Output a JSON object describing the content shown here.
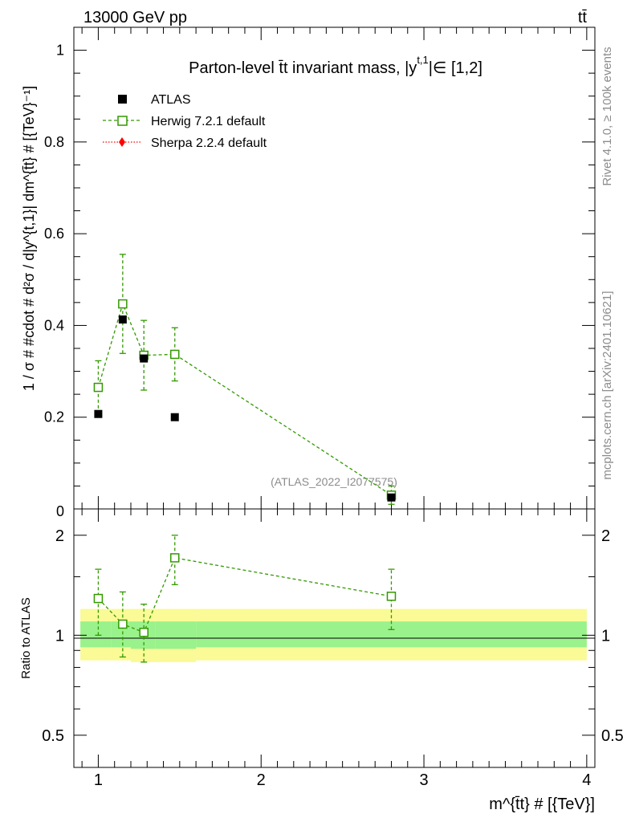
{
  "header": {
    "energy": "13000 GeV pp",
    "process": "tt̄"
  },
  "side_labels": {
    "rivet": "Rivet 4.1.0, ≥ 100k events",
    "source": "mcplots.cern.ch [arXiv:2401.10621]"
  },
  "colors": {
    "atlas": "#000000",
    "herwig": "#339900",
    "sherpa": "#ff0000",
    "band_inner": "#99f28c",
    "band_outer": "#fafa96"
  },
  "chart_data": [
    {
      "type": "scatter",
      "title": "Parton-level t̄t invariant mass, |y",
      "title_sup": "t,1",
      "title_end": "|∈ [1,2]",
      "ylabel": "1 / σ # #cdot # d²σ / d|y^{t,1}| dm^{t̄t} # [{TeV}⁻¹]",
      "ylim": [
        0,
        1.05
      ],
      "xlim": [
        0.85,
        4.05
      ],
      "yticks": [
        0.2,
        0.4,
        0.6,
        0.8,
        1
      ],
      "ytick_labels": [
        "0.2",
        "0.4",
        "0.6",
        "0.8",
        "1"
      ],
      "y_zero_label": "0",
      "watermark": "(ATLAS_2022_I2077575)",
      "legend": [
        "ATLAS",
        "Herwig 7.2.1 default",
        "Sherpa 2.2.4 default"
      ],
      "series": [
        {
          "name": "ATLAS",
          "x": [
            1.0,
            1.15,
            1.28,
            1.47,
            2.8
          ],
          "y": [
            0.207,
            0.413,
            0.328,
            0.2,
            0.025
          ]
        },
        {
          "name": "Herwig 7.2.1 default",
          "x": [
            1.0,
            1.15,
            1.28,
            1.47,
            2.8
          ],
          "y": [
            0.265,
            0.447,
            0.335,
            0.337,
            0.03
          ],
          "err_lo": [
            0.058,
            0.108,
            0.076,
            0.058,
            0.02
          ],
          "err_hi": [
            0.058,
            0.108,
            0.076,
            0.058,
            0.02
          ]
        }
      ]
    },
    {
      "type": "scatter",
      "ylabel": "Ratio to ATLAS",
      "xlabel": "m^{t̄t} # [{TeV}]",
      "ylim": [
        0.4,
        2.4
      ],
      "yscale": "log",
      "xlim": [
        0.85,
        4.05
      ],
      "yticks": [
        0.5,
        1,
        2
      ],
      "ytick_labels": [
        "0.5",
        "1",
        "2"
      ],
      "xticks": [
        1,
        2,
        3,
        4
      ],
      "xtick_labels": [
        "1",
        "2",
        "3",
        "4"
      ],
      "bands": [
        {
          "x0": 0.89,
          "x1": 1.08,
          "inner": [
            0.92,
            1.1
          ],
          "outer": [
            0.84,
            1.2
          ]
        },
        {
          "x0": 1.08,
          "x1": 1.2,
          "inner": [
            0.92,
            1.1
          ],
          "outer": [
            0.84,
            1.2
          ]
        },
        {
          "x0": 1.2,
          "x1": 1.35,
          "inner": [
            0.91,
            1.1
          ],
          "outer": [
            0.83,
            1.2
          ]
        },
        {
          "x0": 1.35,
          "x1": 1.6,
          "inner": [
            0.91,
            1.1
          ],
          "outer": [
            0.83,
            1.2
          ]
        },
        {
          "x0": 1.6,
          "x1": 4.0,
          "inner": [
            0.92,
            1.1
          ],
          "outer": [
            0.84,
            1.2
          ]
        }
      ],
      "series": [
        {
          "name": "Herwig 7.2.1 default",
          "x": [
            1.0,
            1.15,
            1.28,
            1.47,
            2.8
          ],
          "y": [
            1.29,
            1.08,
            1.02,
            1.71,
            1.31
          ],
          "err_lo": [
            0.29,
            0.22,
            0.19,
            0.29,
            0.27
          ],
          "err_hi": [
            0.29,
            0.27,
            0.22,
            0.29,
            0.27
          ]
        }
      ]
    }
  ]
}
